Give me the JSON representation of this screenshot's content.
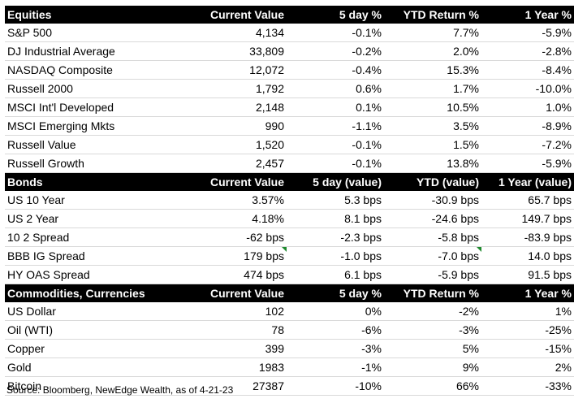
{
  "equities": {
    "headers": [
      "Equities",
      "Current Value",
      "5 day %",
      "YTD Return %",
      "1 Year %"
    ],
    "rows": [
      [
        "S&P 500",
        "4,134",
        "-0.1%",
        "7.7%",
        "-5.9%"
      ],
      [
        "DJ Industrial Average",
        "33,809",
        "-0.2%",
        "2.0%",
        "-2.8%"
      ],
      [
        "NASDAQ Composite",
        "12,072",
        "-0.4%",
        "15.3%",
        "-8.4%"
      ],
      [
        "Russell 2000",
        "1,792",
        "0.6%",
        "1.7%",
        "-10.0%"
      ],
      [
        "MSCI Int'l Developed",
        "2,148",
        "0.1%",
        "10.5%",
        "1.0%"
      ],
      [
        "MSCI Emerging Mkts",
        "990",
        "-1.1%",
        "3.5%",
        "-8.9%"
      ],
      [
        "Russell Value",
        "1,520",
        "-0.1%",
        "1.5%",
        "-7.2%"
      ],
      [
        "Russell Growth",
        "2,457",
        "-0.1%",
        "13.8%",
        "-5.9%"
      ]
    ]
  },
  "bonds": {
    "headers": [
      "Bonds",
      "Current Value",
      "5 day (value)",
      "YTD (value)",
      "1 Year (value)"
    ],
    "rows": [
      [
        "US 10 Year",
        "3.57%",
        "5.3 bps",
        "-30.9 bps",
        "65.7 bps"
      ],
      [
        "US 2 Year",
        "4.18%",
        "8.1 bps",
        "-24.6 bps",
        "149.7 bps"
      ],
      [
        "10 2 Spread",
        "-62 bps",
        "-2.3 bps",
        "-5.8 bps",
        "-83.9 bps"
      ],
      [
        "BBB IG Spread",
        "179 bps",
        "-1.0 bps",
        "-7.0 bps",
        "14.0 bps"
      ],
      [
        "HY OAS Spread",
        "474 bps",
        "6.1 bps",
        "-5.9 bps",
        "91.5 bps"
      ]
    ]
  },
  "commodities": {
    "headers": [
      "Commodities, Currencies",
      "Current Value",
      "5 day %",
      "YTD Return %",
      "1 Year %"
    ],
    "rows": [
      [
        "US Dollar",
        "102",
        "0%",
        "-2%",
        "1%"
      ],
      [
        "Oil (WTI)",
        "78",
        "-6%",
        "-3%",
        "-25%"
      ],
      [
        "Copper",
        "399",
        "-3%",
        "5%",
        "-15%"
      ],
      [
        "Gold",
        "1983",
        "-1%",
        "9%",
        "2%"
      ],
      [
        "Bitcoin",
        "27387",
        "-10%",
        "66%",
        "-33%"
      ]
    ]
  },
  "source": "Source: Bloomberg, NewEdge Wealth, as of 4-21-23"
}
